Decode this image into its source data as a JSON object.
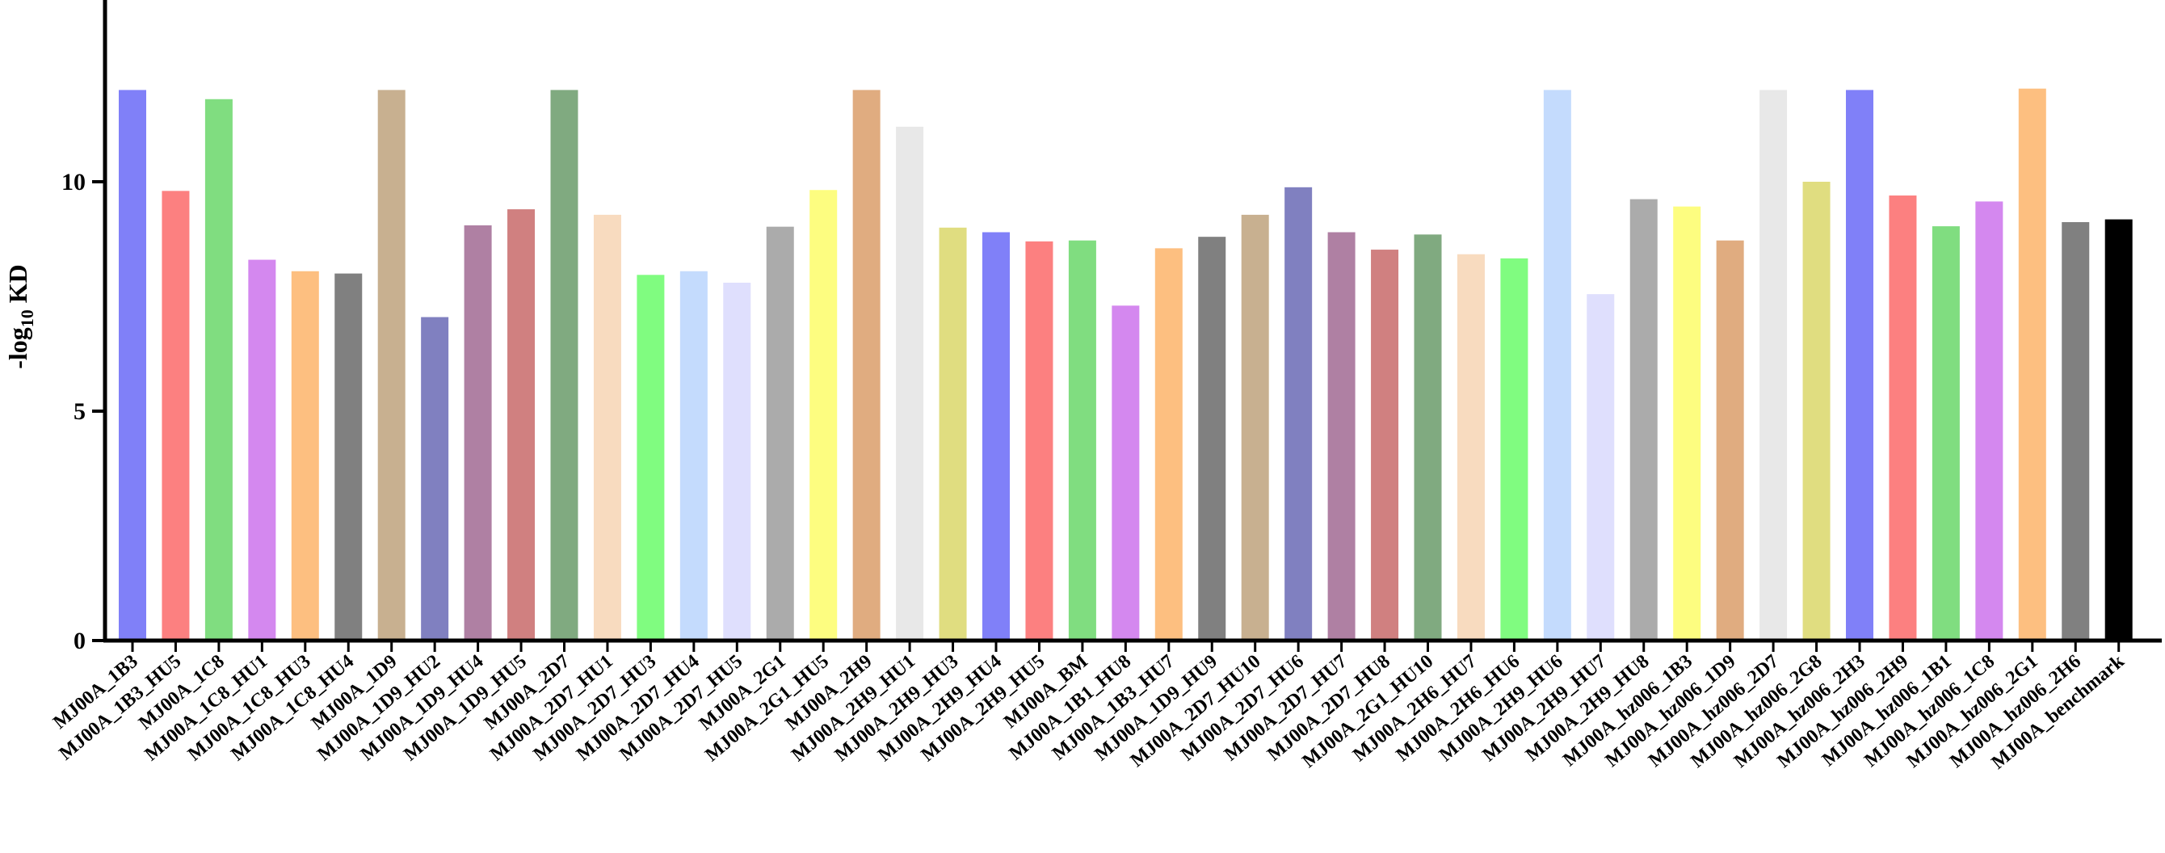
{
  "chart_data": {
    "type": "bar",
    "title": "",
    "xlabel": "",
    "ylabel": "-log10 KD",
    "ylabel_parts": {
      "prefix": "-log",
      "subscript": "10",
      "suffix": " KD"
    },
    "ylim": [
      0,
      14
    ],
    "yticks": [
      0,
      5,
      10
    ],
    "grid": false,
    "legend": "none",
    "categories": [
      "MJ00A_1B3",
      "MJ00A_1B3_HU5",
      "MJ00A_1C8",
      "MJ00A_1C8_HU1",
      "MJ00A_1C8_HU3",
      "MJ00A_1C8_HU4",
      "MJ00A_1D9",
      "MJ00A_1D9_HU2",
      "MJ00A_1D9_HU4",
      "MJ00A_1D9_HU5",
      "MJ00A_2D7",
      "MJ00A_2D7_HU1",
      "MJ00A_2D7_HU3",
      "MJ00A_2D7_HU4",
      "MJ00A_2D7_HU5",
      "MJ00A_2G1",
      "MJ00A_2G1_HU5",
      "MJ00A_2H9",
      "MJ00A_2H9_HU1",
      "MJ00A_2H9_HU3",
      "MJ00A_2H9_HU4",
      "MJ00A_2H9_HU5",
      "MJ00A_BM",
      "MJ00A_1B1_HU8",
      "MJ00A_1B3_HU7",
      "MJ00A_1D9_HU9",
      "MJ00A_2D7_HU10",
      "MJ00A_2D7_HU6",
      "MJ00A_2D7_HU7",
      "MJ00A_2D7_HU8",
      "MJ00A_2G1_HU10",
      "MJ00A_2H6_HU7",
      "MJ00A_2H6_HU6",
      "MJ00A_2H9_HU6",
      "MJ00A_2H9_HU7",
      "MJ00A_2H9_HU8",
      "MJ00A_hz006_1B3",
      "MJ00A_hz006_1D9",
      "MJ00A_hz006_2D7",
      "MJ00A_hz006_2G8",
      "MJ00A_hz006_2H3",
      "MJ00A_hz006_2H9",
      "MJ00A_hz006_1B1",
      "MJ00A_hz006_1C8",
      "MJ00A_hz006_2G1",
      "MJ00A_hz006_2H6",
      "MJ00A_benchmark"
    ],
    "values": [
      12.0,
      9.8,
      11.8,
      8.3,
      8.05,
      8.0,
      12.0,
      7.05,
      9.05,
      9.4,
      12.0,
      9.28,
      7.97,
      8.05,
      7.8,
      9.02,
      9.82,
      12.0,
      11.2,
      9.0,
      8.9,
      8.7,
      8.72,
      7.3,
      8.55,
      8.8,
      9.28,
      9.88,
      8.9,
      8.52,
      8.85,
      8.42,
      8.33,
      12.0,
      7.55,
      9.62,
      9.46,
      8.72,
      12.0,
      10.0,
      12.0,
      9.7,
      9.03,
      9.57,
      12.03,
      9.12,
      9.18
    ],
    "colors": [
      "#8080f8",
      "#fc8080",
      "#80dd80",
      "#d488ef",
      "#fdbf80",
      "#808080",
      "#c8b090",
      "#8080c0",
      "#af80a3",
      "#d08080",
      "#80aa80",
      "#f8dbbf",
      "#80fc80",
      "#c4dbfd",
      "#dfdffd",
      "#ababab",
      "#fdfd80",
      "#e0ac80",
      "#e8e8e8",
      "#e0dd80",
      "#8080f8",
      "#fc8080",
      "#80dd80",
      "#d488ef",
      "#fdbf80",
      "#808080",
      "#c8b090",
      "#8080c0",
      "#af80a3",
      "#d08080",
      "#80aa80",
      "#f8dbbf",
      "#80fc80",
      "#c4dbfd",
      "#dfdffd",
      "#ababab",
      "#fdfd80",
      "#e0ac80",
      "#e8e8e8",
      "#e0dd80",
      "#8080f8",
      "#fc8080",
      "#80dd80",
      "#d488ef",
      "#fdbf80",
      "#808080",
      "#000000"
    ]
  }
}
